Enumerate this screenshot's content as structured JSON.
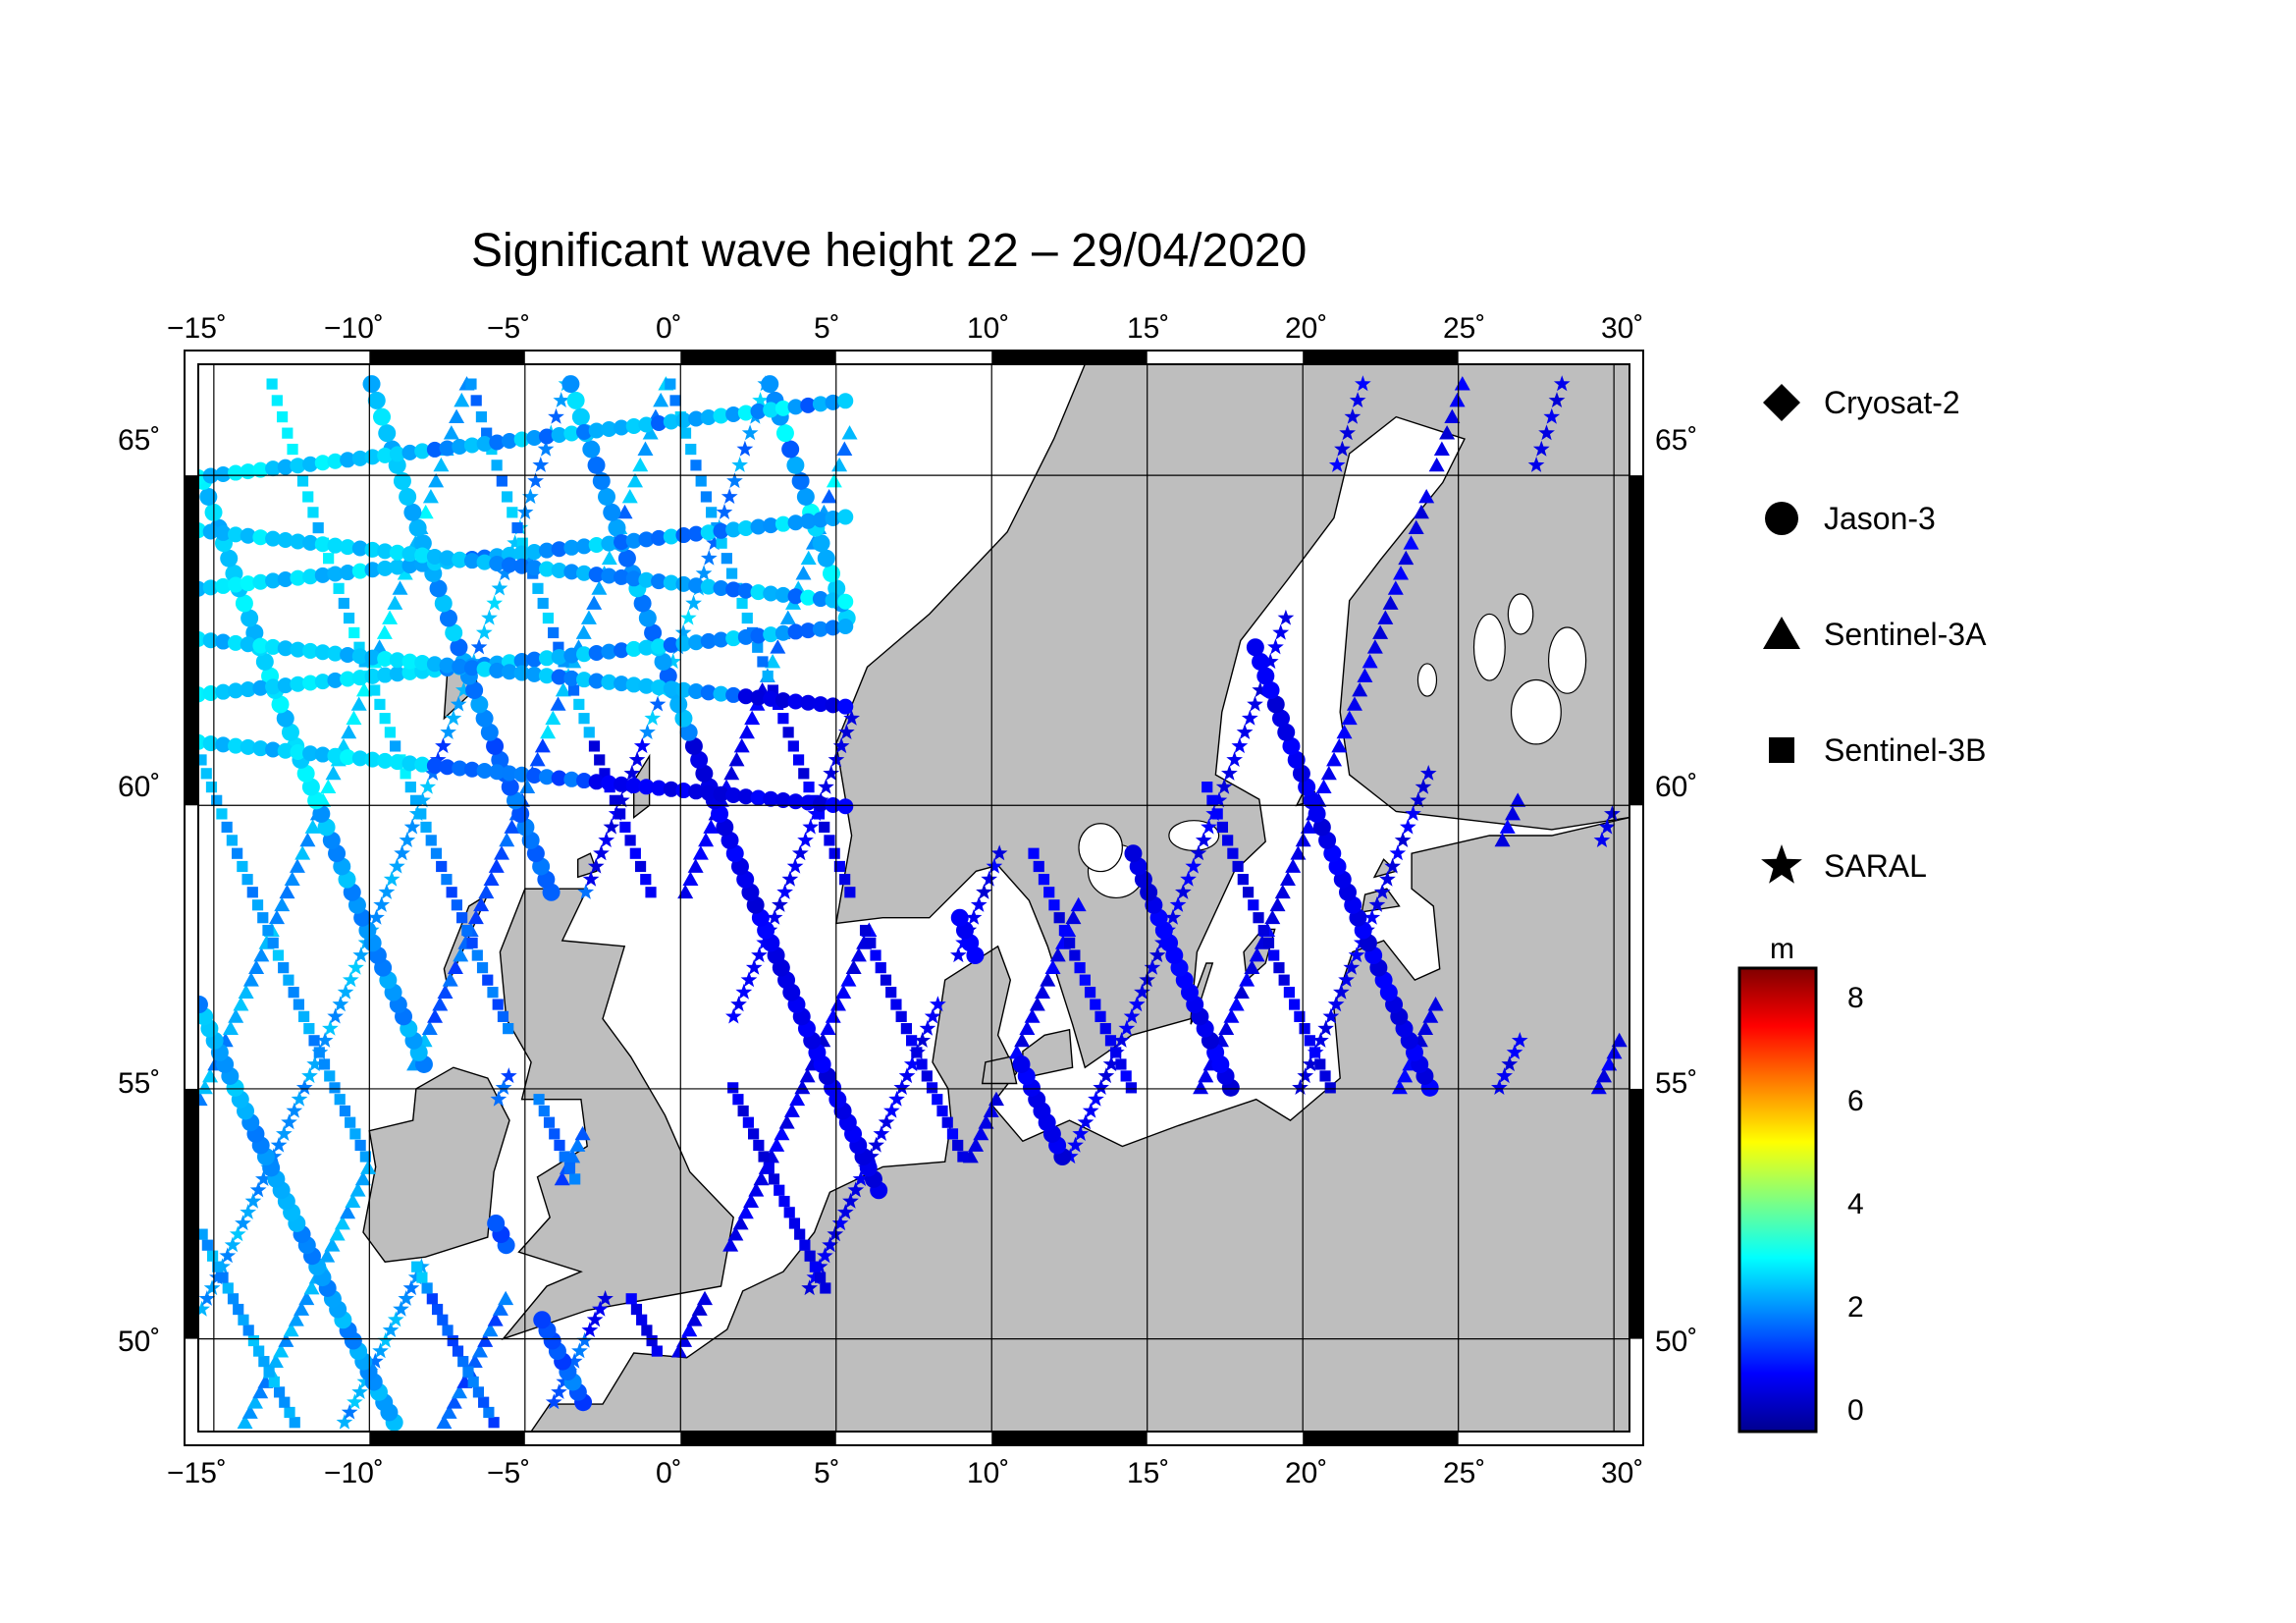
{
  "title": "Significant wave height 22 – 29/04/2020",
  "lon_ticks": [
    "−15˚",
    "−10˚",
    "−5˚",
    "0˚",
    "5˚",
    "10˚",
    "15˚",
    "20˚",
    "25˚",
    "30˚"
  ],
  "lat_ticks": [
    "65˚",
    "60˚",
    "55˚",
    "50˚"
  ],
  "legend": {
    "items": [
      {
        "label": "Cryosat-2",
        "icon": "diamond-icon"
      },
      {
        "label": "Jason-3",
        "icon": "circle-icon"
      },
      {
        "label": "Sentinel-3A",
        "icon": "triangle-icon"
      },
      {
        "label": "Sentinel-3B",
        "icon": "square-icon"
      },
      {
        "label": "SARAL",
        "icon": "star-icon"
      }
    ]
  },
  "colorbar": {
    "unit": "m",
    "ticks": [
      "8",
      "6",
      "4",
      "2",
      "0"
    ],
    "range": [
      -0.6,
      8.6
    ],
    "colors": [
      "#00008f",
      "#0000ff",
      "#0080ff",
      "#00ffff",
      "#80ff80",
      "#ffff00",
      "#ff8000",
      "#ff0000",
      "#800000"
    ]
  },
  "map": {
    "lon_range": [
      -15.5,
      30.5
    ],
    "lat_range": [
      48,
      66.5
    ],
    "land_color": "#bebebe",
    "sea_color": "#ffffff"
  }
}
